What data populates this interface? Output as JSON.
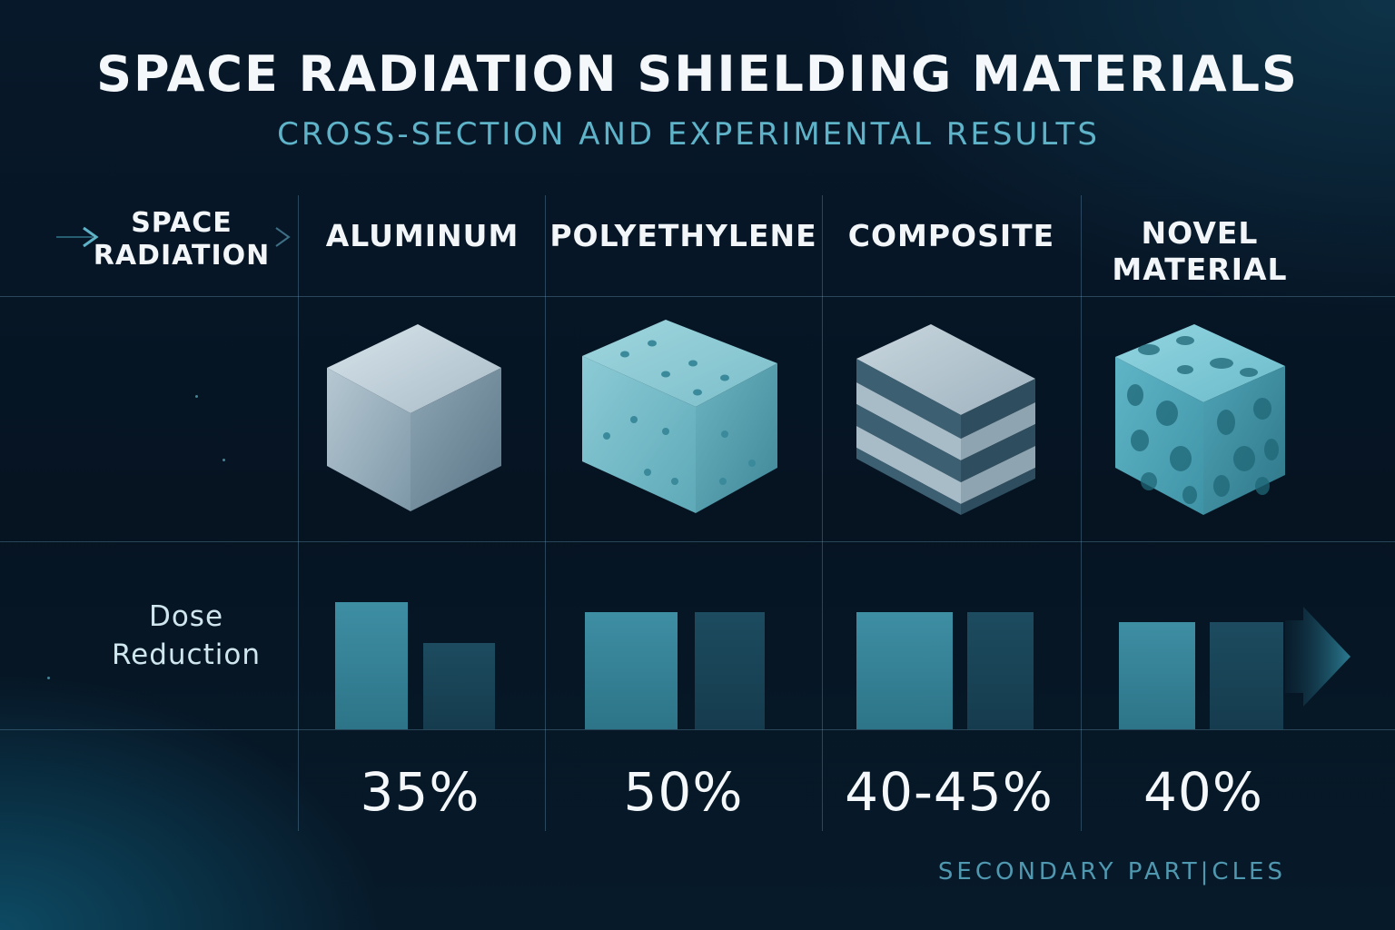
{
  "header": {
    "title": "SPACE RADIATION SHIELDING MATERIALS",
    "subtitle": "CROSS-SECTION AND EXPERIMENTAL RESULTS"
  },
  "row_labels": {
    "side_top_line1": "SPACE",
    "side_top_line2": "RADIATION",
    "dose_line1": "Dose",
    "dose_line2": "Reduction"
  },
  "materials": [
    {
      "name_line1": "ALUMINUM",
      "name_line2": "",
      "reduction": "35%",
      "cube": "aluminum-cube-icon",
      "bar_values": [
        0.9,
        0.61
      ]
    },
    {
      "name_line1": "POLYETHYLENE",
      "name_line2": "",
      "reduction": "50%",
      "cube": "polyethylene-cube-icon",
      "bar_values": [
        0.83,
        0.83
      ]
    },
    {
      "name_line1": "COMPOSITE",
      "name_line2": "",
      "reduction": "40-45%",
      "cube": "composite-cube-icon",
      "bar_values": [
        0.83,
        0.83
      ]
    },
    {
      "name_line1": "NOVEL",
      "name_line2": "MATERIAL",
      "reduction": "40%",
      "cube": "novel-material-cube-icon",
      "bar_values": [
        0.76,
        0.76
      ]
    }
  ],
  "footer": {
    "label": "SECONDARY PART|CLES"
  },
  "colors": {
    "background": "#061422",
    "accent": "#5fb3c8",
    "bar_primary": "#3e8ea3",
    "bar_secondary": "#1d4b5f"
  }
}
